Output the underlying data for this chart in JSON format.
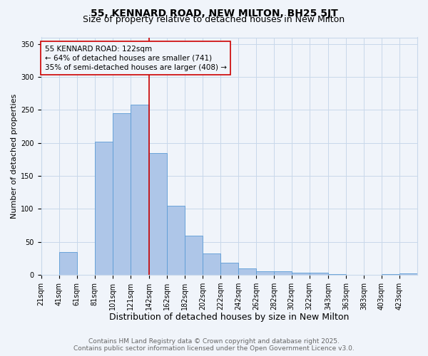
{
  "title": "55, KENNARD ROAD, NEW MILTON, BH25 5JT",
  "subtitle": "Size of property relative to detached houses in New Milton",
  "xlabel": "Distribution of detached houses by size in New Milton",
  "ylabel": "Number of detached properties",
  "bar_labels": [
    "21sqm",
    "41sqm",
    "61sqm",
    "81sqm",
    "101sqm",
    "121sqm",
    "142sqm",
    "162sqm",
    "182sqm",
    "202sqm",
    "222sqm",
    "242sqm",
    "262sqm",
    "282sqm",
    "302sqm",
    "322sqm",
    "343sqm",
    "363sqm",
    "383sqm",
    "403sqm",
    "423sqm"
  ],
  "bar_left_edges": [
    21,
    41,
    61,
    81,
    101,
    121,
    142,
    162,
    182,
    202,
    222,
    242,
    262,
    282,
    302,
    322,
    343,
    363,
    383,
    403,
    423
  ],
  "bar_widths": [
    20,
    20,
    20,
    20,
    20,
    21,
    20,
    20,
    20,
    20,
    20,
    20,
    20,
    20,
    20,
    21,
    20,
    20,
    20,
    20,
    20
  ],
  "bar_heights": [
    0,
    35,
    0,
    202,
    245,
    258,
    185,
    105,
    60,
    32,
    18,
    10,
    6,
    6,
    3,
    3,
    1,
    0,
    0,
    1,
    2
  ],
  "bar_color": "#aec6e8",
  "bar_edge_color": "#5b9bd5",
  "bg_color": "#f0f4fa",
  "grid_color": "#c8d8ea",
  "vline_x": 142,
  "vline_color": "#cc0000",
  "annotation_text": "55 KENNARD ROAD: 122sqm\n← 64% of detached houses are smaller (741)\n35% of semi-detached houses are larger (408) →",
  "annotation_box_color": "#cc0000",
  "xlim": [
    21,
    443
  ],
  "ylim": [
    0,
    360
  ],
  "yticks": [
    0,
    50,
    100,
    150,
    200,
    250,
    300,
    350
  ],
  "xtick_positions": [
    21,
    41,
    61,
    81,
    101,
    121,
    142,
    162,
    182,
    202,
    222,
    242,
    262,
    282,
    302,
    322,
    343,
    363,
    383,
    403,
    423
  ],
  "footer_line1": "Contains HM Land Registry data © Crown copyright and database right 2025.",
  "footer_line2": "Contains public sector information licensed under the Open Government Licence v3.0.",
  "title_fontsize": 10,
  "subtitle_fontsize": 9,
  "xlabel_fontsize": 9,
  "ylabel_fontsize": 8,
  "tick_fontsize": 7,
  "annotation_fontsize": 7.5,
  "footer_fontsize": 6.5
}
